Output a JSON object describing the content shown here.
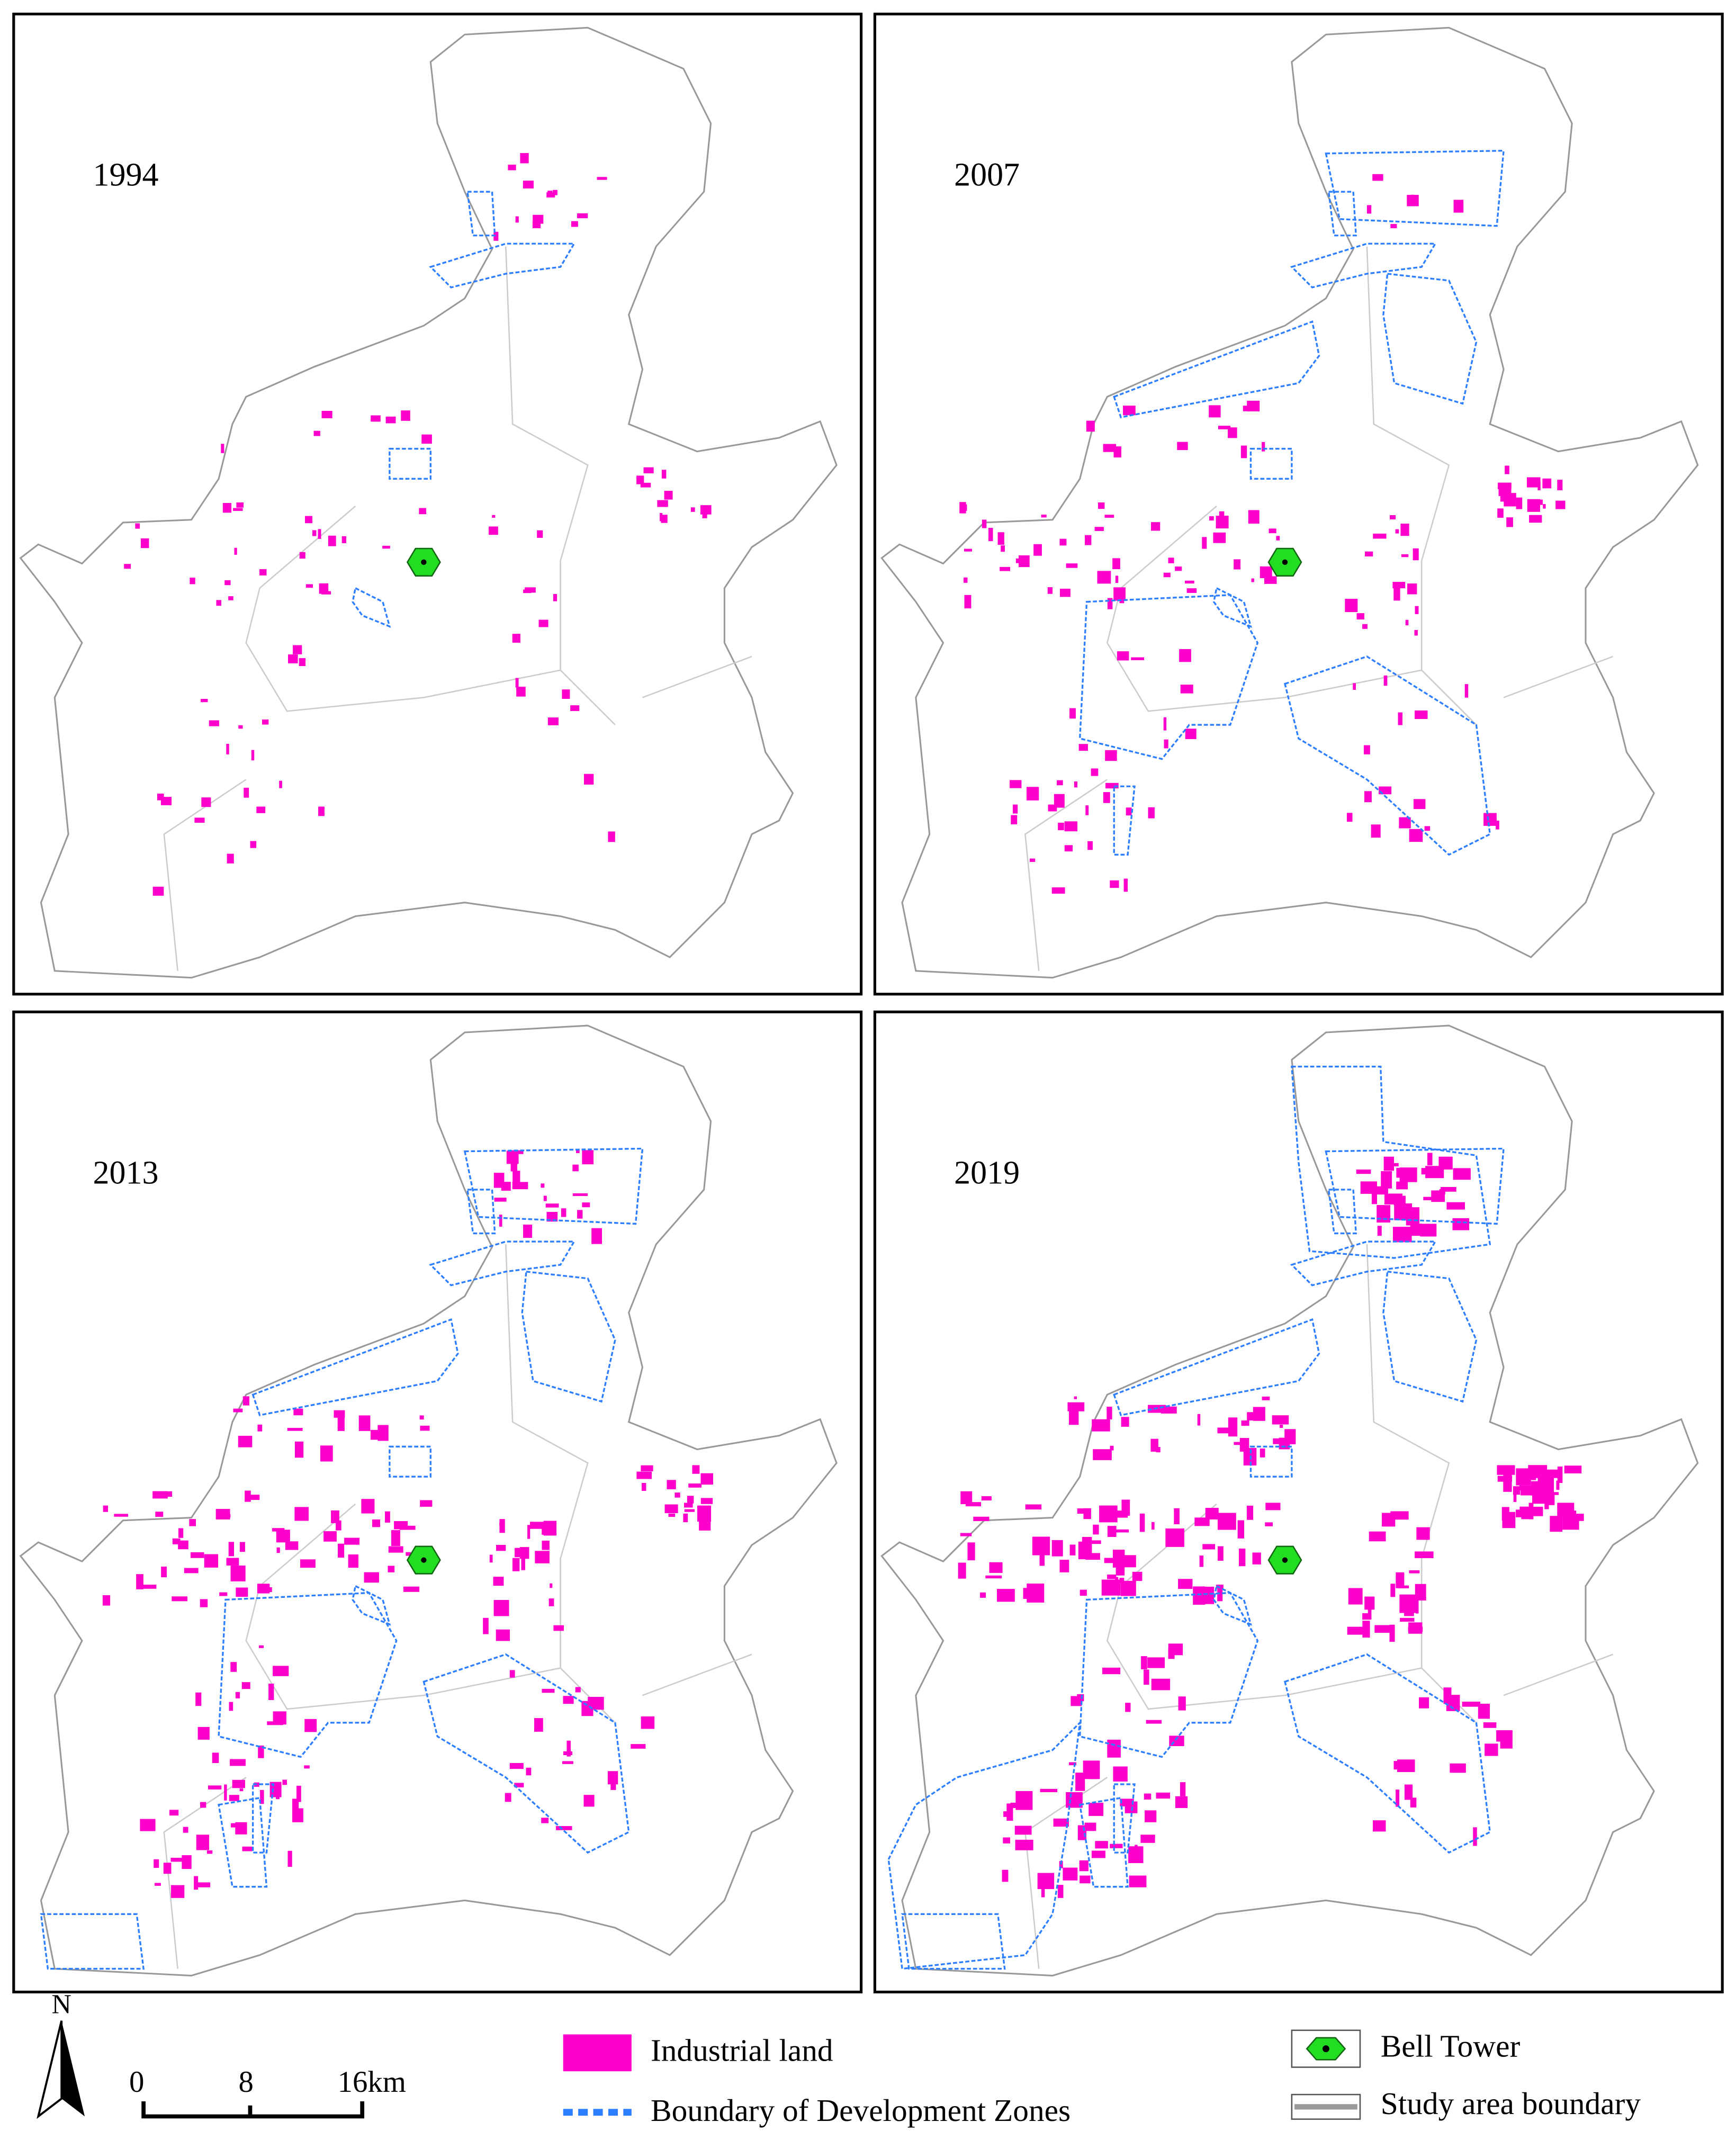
{
  "panels": [
    {
      "year": "1994"
    },
    {
      "year": "2007"
    },
    {
      "year": "2013"
    },
    {
      "year": "2019"
    }
  ],
  "north_arrow": {
    "label": "N"
  },
  "scale_bar": {
    "labels": [
      "0",
      "8",
      "16km"
    ]
  },
  "legend": {
    "items": [
      {
        "label": "Industrial land"
      },
      {
        "label": "Boundary of Development Zones"
      },
      {
        "label": "Bell Tower"
      },
      {
        "label": "Study area boundary"
      }
    ]
  }
}
